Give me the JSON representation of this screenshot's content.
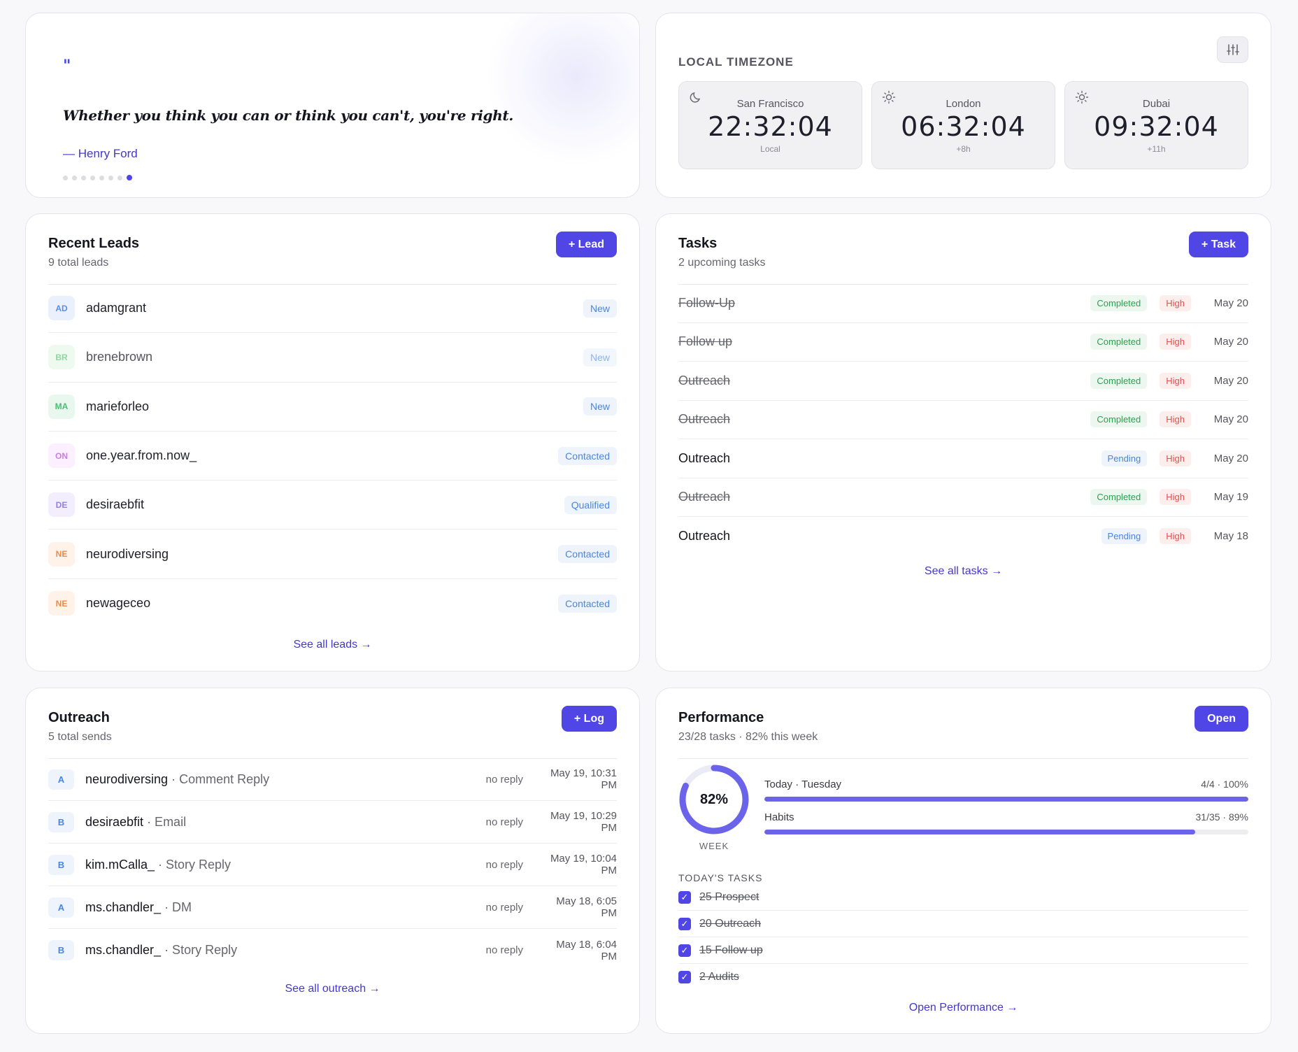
{
  "quote": {
    "mark": "\"",
    "text": "Whether you think you can or think you can't, you're right.",
    "author": "— Henry Ford",
    "dots_total": 8,
    "dots_active_index": 7
  },
  "timezone": {
    "title": "LOCAL TIMEZONE",
    "settings_icon": "sliders-icon",
    "clocks": [
      {
        "icon": "moon-icon",
        "city": "San Francisco",
        "time": "22:32:04",
        "offset": "Local"
      },
      {
        "icon": "sun-icon",
        "city": "London",
        "time": "06:32:04",
        "offset": "+8h"
      },
      {
        "icon": "sun-icon",
        "city": "Dubai",
        "time": "09:32:04",
        "offset": "+11h"
      }
    ]
  },
  "leads": {
    "title": "Recent Leads",
    "subtitle": "9 total leads",
    "add_label": "+ Lead",
    "see_all": "See all leads →",
    "items": [
      {
        "initials": "AD",
        "name": "adamgrant",
        "status": "New",
        "avatar_bg": "#eaf1fc",
        "avatar_fg": "#5b8fe0",
        "dim": false
      },
      {
        "initials": "BR",
        "name": "brenebrown",
        "status": "New",
        "avatar_bg": "#eefaf0",
        "avatar_fg": "#8fd6a0",
        "dim": true
      },
      {
        "initials": "MA",
        "name": "marieforleo",
        "status": "New",
        "avatar_bg": "#e9f8ef",
        "avatar_fg": "#4cbc74",
        "dim": false
      },
      {
        "initials": "ON",
        "name": "one.year.from.now_",
        "status": "Contacted",
        "avatar_bg": "#fcefff",
        "avatar_fg": "#cf7be3",
        "dim": false
      },
      {
        "initials": "DE",
        "name": "desiraebfit",
        "status": "Qualified",
        "avatar_bg": "#f2eefd",
        "avatar_fg": "#9380e3",
        "dim": false
      },
      {
        "initials": "NE",
        "name": "neurodiversing",
        "status": "Contacted",
        "avatar_bg": "#fff2e8",
        "avatar_fg": "#ee8b47",
        "dim": false
      },
      {
        "initials": "NE",
        "name": "newageceo",
        "status": "Contacted",
        "avatar_bg": "#fff2e8",
        "avatar_fg": "#ee8b47",
        "dim": false
      }
    ]
  },
  "tasks": {
    "title": "Tasks",
    "subtitle": "2 upcoming tasks",
    "add_label": "+ Task",
    "see_all": "See all tasks →",
    "items": [
      {
        "name": "Follow-Up",
        "status": "Completed",
        "priority": "High",
        "date": "May 20",
        "done": true
      },
      {
        "name": "Follow up",
        "status": "Completed",
        "priority": "High",
        "date": "May 20",
        "done": true
      },
      {
        "name": "Outreach",
        "status": "Completed",
        "priority": "High",
        "date": "May 20",
        "done": true
      },
      {
        "name": "Outreach",
        "status": "Completed",
        "priority": "High",
        "date": "May 20",
        "done": true
      },
      {
        "name": "Outreach",
        "status": "Pending",
        "priority": "High",
        "date": "May 20",
        "done": false
      },
      {
        "name": "Outreach",
        "status": "Completed",
        "priority": "High",
        "date": "May 19",
        "done": true
      },
      {
        "name": "Outreach",
        "status": "Pending",
        "priority": "High",
        "date": "May 18",
        "done": false
      }
    ]
  },
  "outreach": {
    "title": "Outreach",
    "subtitle": "5 total sends",
    "add_label": "+ Log",
    "see_all": "See all outreach →",
    "items": [
      {
        "initial": "A",
        "handle": "neurodiversing",
        "type": " · Comment Reply",
        "reply": "no reply",
        "date": "May 19, 10:31 PM"
      },
      {
        "initial": "B",
        "handle": "desiraebfit",
        "type": " · Email",
        "reply": "no reply",
        "date": "May 19, 10:29 PM"
      },
      {
        "initial": "B",
        "handle": "kim.mCalla_",
        "type": " · Story Reply",
        "reply": "no reply",
        "date": "May 19, 10:04 PM"
      },
      {
        "initial": "A",
        "handle": "ms.chandler_",
        "type": " · DM",
        "reply": "no reply",
        "date": "May 18, 6:05 PM"
      },
      {
        "initial": "B",
        "handle": "ms.chandler_",
        "type": " · Story Reply",
        "reply": "no reply",
        "date": "May 18, 6:04 PM"
      }
    ]
  },
  "performance": {
    "title": "Performance",
    "subtitle": "23/28 tasks · 82% this week",
    "open_label": "Open",
    "ring_value": "82%",
    "ring_percent": 82,
    "ring_caption": "WEEK",
    "bars": [
      {
        "label": "Today · Tuesday",
        "value": "4/4 · 100%",
        "percent": 100
      },
      {
        "label": "Habits",
        "value": "31/35 · 89%",
        "percent": 89
      }
    ],
    "today_title": "TODAY'S TASKS",
    "todos": [
      {
        "label": "25 Prospect",
        "checked": true
      },
      {
        "label": "20 Outreach",
        "checked": true
      },
      {
        "label": "15 Follow up",
        "checked": true
      },
      {
        "label": "2 Audits",
        "checked": true
      }
    ],
    "see_all": "Open Performance →"
  }
}
